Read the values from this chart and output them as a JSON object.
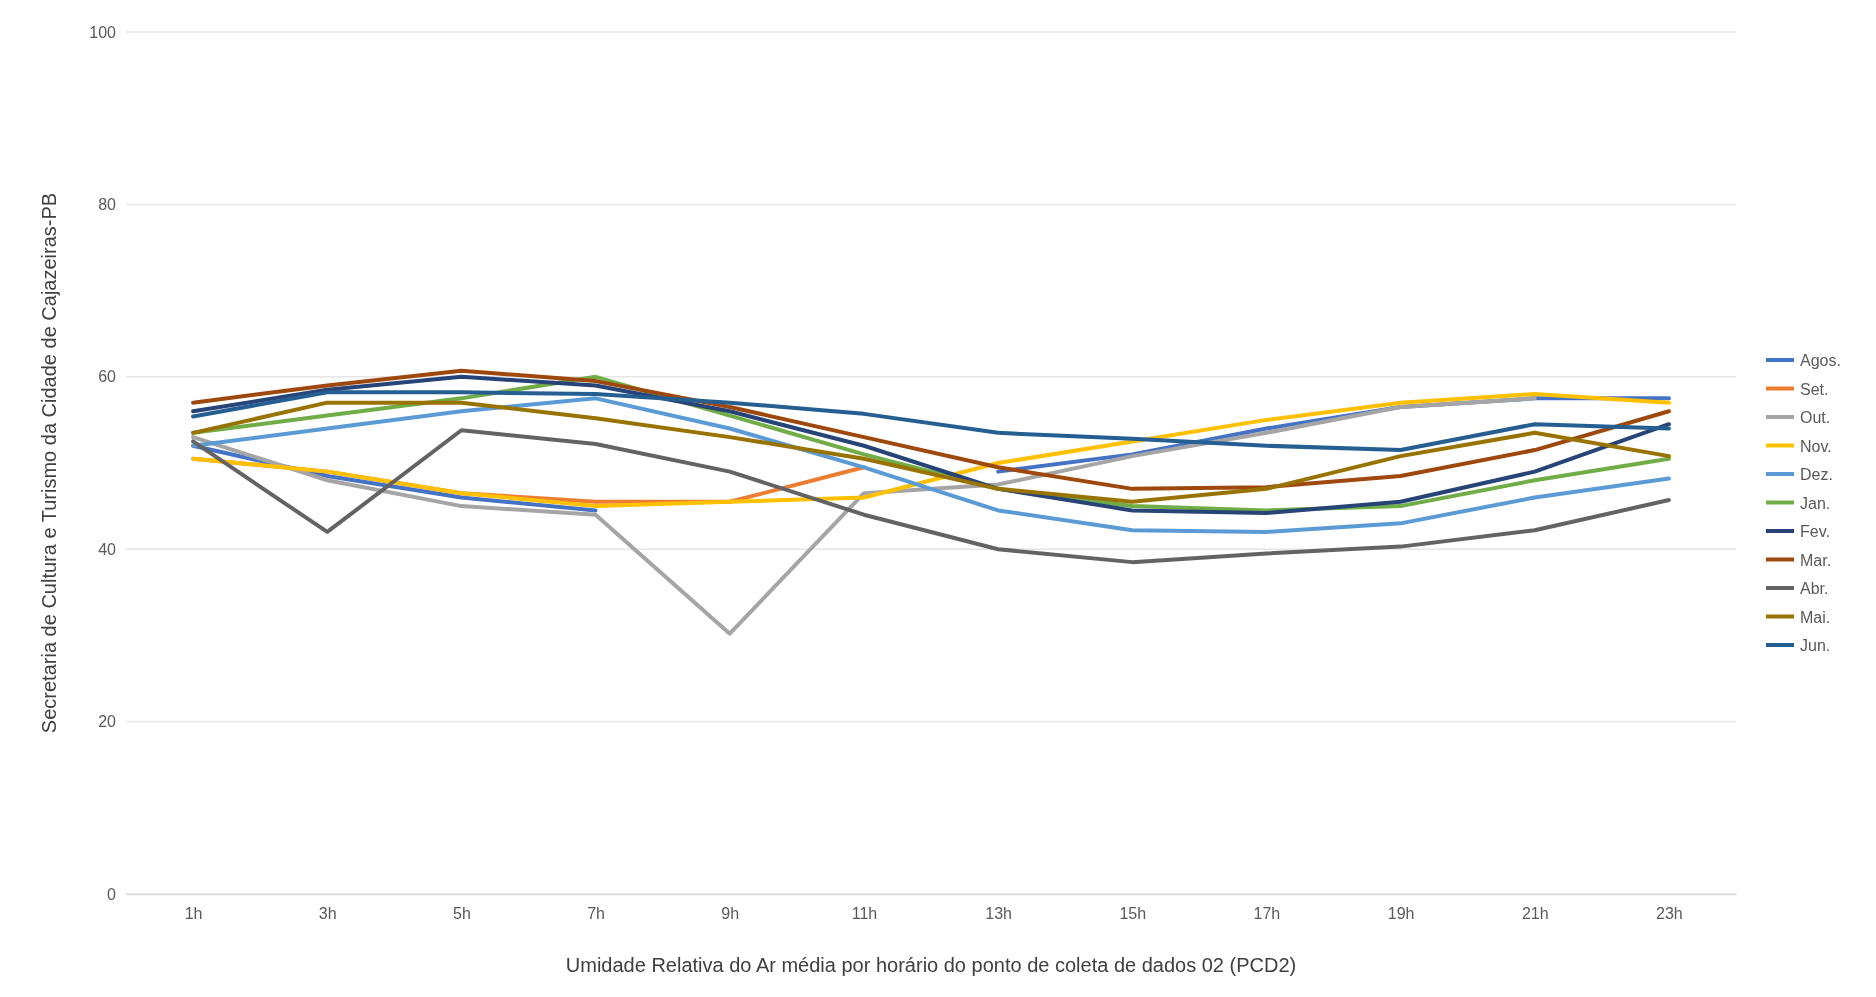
{
  "chart_data": {
    "type": "line",
    "xlabel": "Umidade Relativa do Ar média por horário do ponto de coleta de dados 02 (PCD2)",
    "ylabel": "Secretaria de Cultura e Turismo da Cidade de Cajazeiras-PB",
    "categories": [
      "1h",
      "3h",
      "5h",
      "7h",
      "9h",
      "11h",
      "13h",
      "15h",
      "17h",
      "19h",
      "21h",
      "23h"
    ],
    "series": [
      {
        "name": "Agos.",
        "color": "#4472c4",
        "values": [
          52,
          48.5,
          46,
          44.5,
          null,
          null,
          49,
          51,
          54,
          56.5,
          57.5,
          57.5
        ]
      },
      {
        "name": "Set.",
        "color": "#ed7d31",
        "values": [
          50.5,
          49,
          46.5,
          45.5,
          45.5,
          49.5,
          null,
          null,
          null,
          null,
          null,
          null
        ]
      },
      {
        "name": "Out.",
        "color": "#a5a5a5",
        "values": [
          53,
          48,
          45,
          44,
          30.2,
          46.5,
          47.5,
          50.8,
          53.5,
          56.5,
          57.5,
          null
        ]
      },
      {
        "name": "Nov.",
        "color": "#ffc000",
        "values": [
          50.5,
          49,
          46.5,
          45,
          45.5,
          46,
          50,
          52.5,
          55,
          57,
          58,
          57
        ]
      },
      {
        "name": "Dez.",
        "color": "#5b9bd5",
        "values": [
          52,
          54,
          56,
          57.5,
          54,
          49.5,
          44.5,
          42.2,
          42,
          43,
          46,
          48.2
        ]
      },
      {
        "name": "Jan.",
        "color": "#70ad47",
        "values": [
          53.5,
          55.5,
          57.5,
          60,
          55.5,
          51,
          47,
          45,
          44.5,
          45,
          48,
          50.5
        ]
      },
      {
        "name": "Fev.",
        "color": "#264478",
        "values": [
          56,
          58.5,
          60,
          59,
          56,
          52,
          47,
          44.5,
          44.2,
          45.5,
          49,
          54.5
        ]
      },
      {
        "name": "Mar.",
        "color": "#9e480e",
        "values": [
          57,
          59,
          60.7,
          59.5,
          56.5,
          53,
          49.5,
          47,
          47.2,
          48.5,
          51.5,
          56
        ]
      },
      {
        "name": "Abr.",
        "color": "#636363",
        "values": [
          52.5,
          42,
          53.8,
          52.2,
          49,
          44,
          40,
          38.5,
          39.5,
          40.3,
          42.2,
          45.7
        ]
      },
      {
        "name": "Mai.",
        "color": "#997300",
        "values": [
          53.5,
          57,
          57,
          55.2,
          53,
          50.5,
          47,
          45.5,
          47,
          50.8,
          53.5,
          50.8
        ]
      },
      {
        "name": "Jun.",
        "color": "#255e91",
        "values": [
          55.4,
          58.2,
          58.2,
          58,
          57,
          55.7,
          53.5,
          52.8,
          52,
          51.5,
          54.5,
          54
        ]
      }
    ],
    "ylim": [
      0,
      100
    ],
    "yticks": [
      0,
      20,
      40,
      60,
      80,
      100
    ],
    "grid": "y",
    "legend": "right",
    "marker": "none",
    "line_style": "solid"
  }
}
